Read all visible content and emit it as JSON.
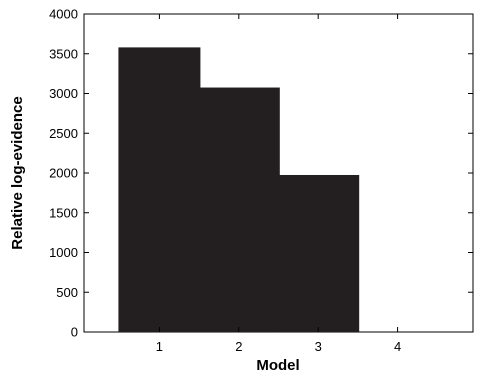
{
  "chart_data": {
    "type": "bar",
    "title": "",
    "xlabel": "Model",
    "ylabel": "Relative log-evidence",
    "categories": [
      "1",
      "2",
      "3",
      "4"
    ],
    "values": [
      3580,
      3075,
      1975,
      0
    ],
    "ylim": [
      0,
      4000
    ],
    "yticks": [
      0,
      500,
      1000,
      1500,
      2000,
      2500,
      3000,
      3500,
      4000
    ],
    "ytick_labels": [
      "0",
      "500",
      "1000",
      "1500",
      "2000",
      "2500",
      "3000",
      "3500",
      "4000"
    ],
    "grid": false,
    "legend": "none",
    "bar_color": "#231f20"
  }
}
